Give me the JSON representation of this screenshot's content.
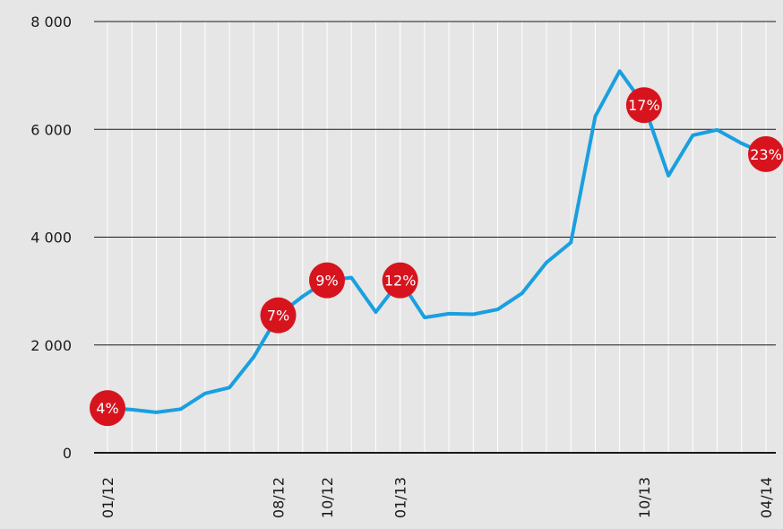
{
  "chart_data": {
    "type": "line",
    "categories": [
      "01/12",
      null,
      null,
      null,
      null,
      null,
      null,
      "08/12",
      null,
      "10/12",
      null,
      null,
      "01/13",
      null,
      null,
      null,
      null,
      null,
      null,
      null,
      null,
      null,
      "10/13",
      null,
      null,
      null,
      null,
      "04/14"
    ],
    "series": [
      {
        "name": null,
        "color": "#1a9fe0",
        "values": [
          830,
          800,
          750,
          810,
          1100,
          1210,
          1780,
          2550,
          2900,
          3200,
          3250,
          2610,
          3200,
          2510,
          2580,
          2570,
          2660,
          2960,
          3530,
          3900,
          6240,
          7080,
          6450,
          5140,
          5890,
          5990,
          5740,
          5540
        ]
      }
    ],
    "annotations": [
      {
        "category": "01/12",
        "label": "4%"
      },
      {
        "category": "08/12",
        "label": "7%"
      },
      {
        "category": "10/12",
        "label": "9%"
      },
      {
        "category": "01/13",
        "label": "12%"
      },
      {
        "category": "10/13",
        "label": "17%"
      },
      {
        "category": "04/14",
        "label": "23%"
      }
    ],
    "annotation_color": "#d7141e",
    "ylim": [
      0,
      8000
    ],
    "yticks": [
      {
        "value": 0,
        "label": "0"
      },
      {
        "value": 2000,
        "label": "2 000"
      },
      {
        "value": 4000,
        "label": "4 000"
      },
      {
        "value": 6000,
        "label": "6 000"
      },
      {
        "value": 8000,
        "label": "8 000"
      }
    ],
    "grid": true
  }
}
